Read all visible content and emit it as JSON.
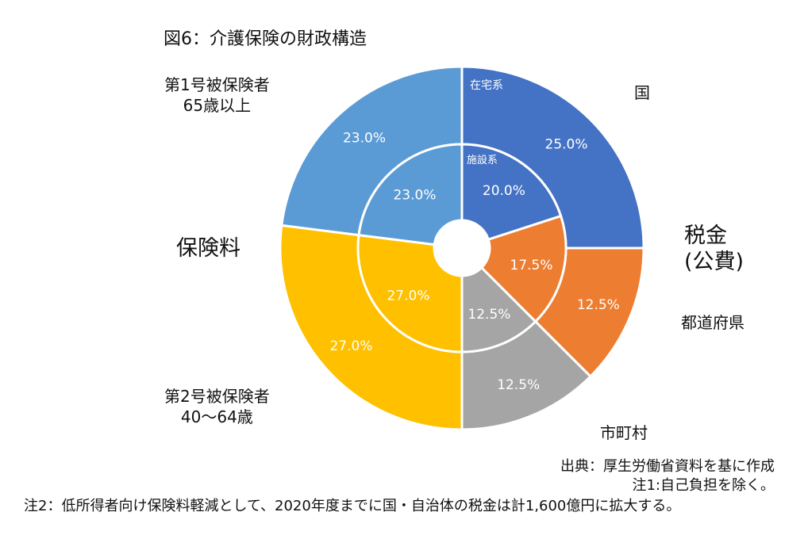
{
  "title": "図6：介護保険の財政構造",
  "labels": {
    "hoken": "保険料",
    "zeikin_line1": "税金",
    "zeikin_line2": "(公費)",
    "kuni": "国",
    "todofuken": "都道府県",
    "shichoson": "市町村",
    "ins1_line1": "第1号被保険者",
    "ins1_line2": "65歳以上",
    "ins2_line1": "第2号被保険者",
    "ins2_line2": "40～64歳"
  },
  "source": {
    "line1": "出典：厚生労働省資料を基に作成",
    "line2": "注1:自己負担を除く。"
  },
  "note2": "注2：低所得者向け保険料軽減として、2020年度までに国・自治体の税金は計1,600億円に拡大する。",
  "chart_data": {
    "type": "pie",
    "rings": [
      {
        "name": "在宅系",
        "slices": [
          {
            "label": "25.0%",
            "value": 25.0,
            "color": "#4472C4"
          },
          {
            "label": "12.5%",
            "value": 12.5,
            "color": "#ED7D31"
          },
          {
            "label": "12.5%",
            "value": 12.5,
            "color": "#A5A5A5"
          },
          {
            "label": "27.0%",
            "value": 27.0,
            "color": "#FFC000"
          },
          {
            "label": "23.0%",
            "value": 23.0,
            "color": "#5B9BD5"
          }
        ]
      },
      {
        "name": "施設系",
        "slices": [
          {
            "label": "20.0%",
            "value": 20.0,
            "color": "#4472C4"
          },
          {
            "label": "17.5%",
            "value": 17.5,
            "color": "#ED7D31"
          },
          {
            "label": "12.5%",
            "value": 12.5,
            "color": "#A5A5A5"
          },
          {
            "label": "27.0%",
            "value": 27.0,
            "color": "#FFC000"
          },
          {
            "label": "23.0%",
            "value": 23.0,
            "color": "#5B9BD5"
          }
        ]
      }
    ]
  }
}
